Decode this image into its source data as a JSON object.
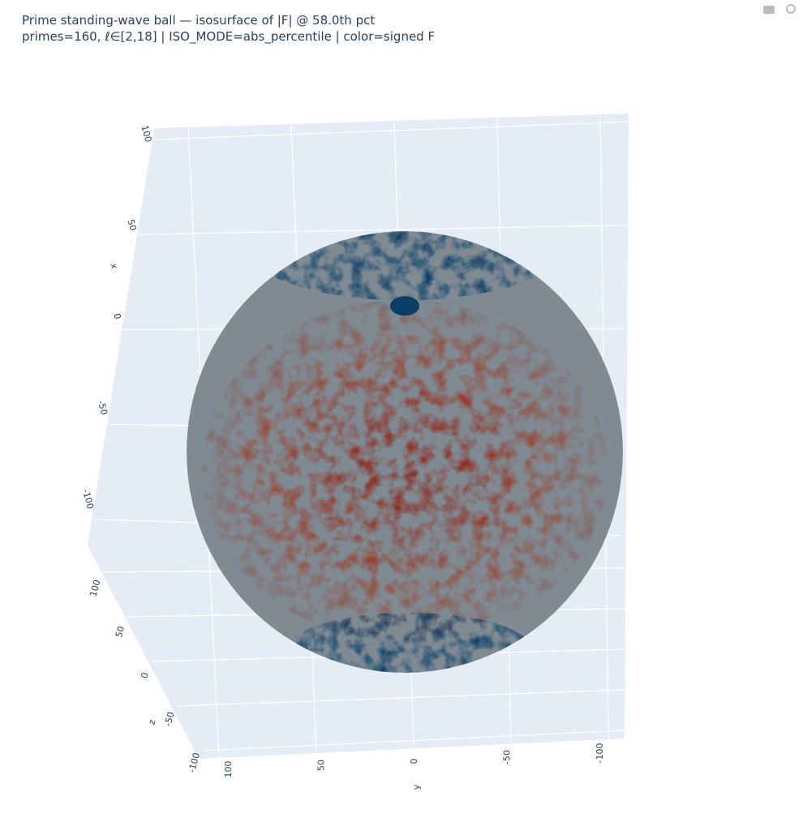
{
  "chart_data": {
    "type": "isosurface",
    "title": "Prime standing-wave ball — isosurface of |F| @ 58.0th pct",
    "subtitle": "primes=160, ℓ∈[2,18] | ISO_MODE=abs_percentile | color=signed F",
    "xaxis": {
      "title": "x",
      "range": [
        -100,
        100
      ],
      "ticks": [
        100,
        50,
        0,
        -50,
        -100
      ]
    },
    "yaxis": {
      "title": "y",
      "range": [
        -100,
        100
      ],
      "ticks": [
        100,
        50,
        0,
        -50,
        -100
      ]
    },
    "zaxis": {
      "title": "z",
      "range": [
        -100,
        100
      ],
      "ticks": [
        100,
        50,
        0,
        -50,
        -100
      ]
    },
    "colorscale": [
      "#0b3d66",
      "#7f8a93",
      "#8b1a0e"
    ]
  }
}
